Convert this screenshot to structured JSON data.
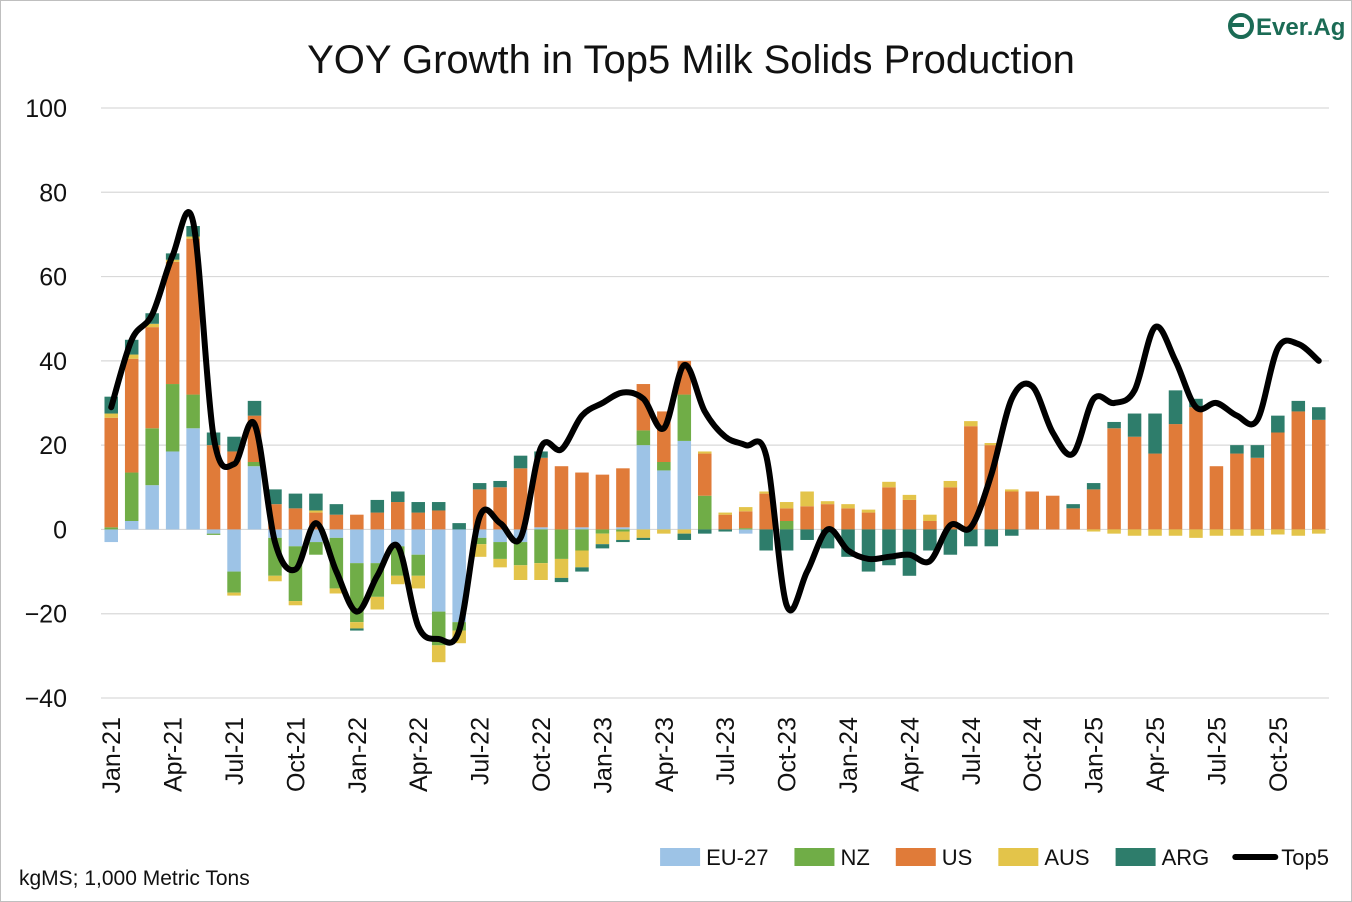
{
  "brand": {
    "logo_text": "Ever.Ag",
    "color": "#1b6b55"
  },
  "footnote": "kgMS; 1,000 Metric Tons",
  "chart_data": {
    "type": "bar",
    "stacked": true,
    "title": "YOY Growth in Top5 Milk Solids Production",
    "xlabel": "",
    "ylabel": "",
    "ylim": [
      -40,
      100
    ],
    "yticks": [
      -40,
      -20,
      0,
      20,
      40,
      60,
      80,
      100
    ],
    "grid": "horizontal",
    "legend_position": "bottom-right",
    "x_tick_labels": [
      {
        "index": 0,
        "label": "Jan-21"
      },
      {
        "index": 3,
        "label": "Apr-21"
      },
      {
        "index": 6,
        "label": "Jul-21"
      },
      {
        "index": 9,
        "label": "Oct-21"
      },
      {
        "index": 12,
        "label": "Jan-22"
      },
      {
        "index": 15,
        "label": "Apr-22"
      },
      {
        "index": 18,
        "label": "Jul-22"
      },
      {
        "index": 21,
        "label": "Oct-22"
      },
      {
        "index": 24,
        "label": "Jan-23"
      },
      {
        "index": 27,
        "label": "Apr-23"
      },
      {
        "index": 30,
        "label": "Jul-23"
      },
      {
        "index": 33,
        "label": "Oct-23"
      },
      {
        "index": 36,
        "label": "Jan-24"
      },
      {
        "index": 39,
        "label": "Apr-24"
      },
      {
        "index": 42,
        "label": "Jul-24"
      },
      {
        "index": 45,
        "label": "Oct-24"
      },
      {
        "index": 48,
        "label": "Jan-25"
      },
      {
        "index": 51,
        "label": "Apr-25"
      },
      {
        "index": 54,
        "label": "Jul-25"
      },
      {
        "index": 57,
        "label": "Oct-25"
      }
    ],
    "categories": [
      "Jan-21",
      "Feb-21",
      "Mar-21",
      "Apr-21",
      "May-21",
      "Jun-21",
      "Jul-21",
      "Aug-21",
      "Sep-21",
      "Oct-21",
      "Nov-21",
      "Dec-21",
      "Jan-22",
      "Feb-22",
      "Mar-22",
      "Apr-22",
      "May-22",
      "Jun-22",
      "Jul-22",
      "Aug-22",
      "Sep-22",
      "Oct-22",
      "Nov-22",
      "Dec-22",
      "Jan-23",
      "Feb-23",
      "Mar-23",
      "Apr-23",
      "May-23",
      "Jun-23",
      "Jul-23",
      "Aug-23",
      "Sep-23",
      "Oct-23",
      "Nov-23",
      "Dec-23",
      "Jan-24",
      "Feb-24",
      "Mar-24",
      "Apr-24",
      "May-24",
      "Jun-24",
      "Jul-24",
      "Aug-24",
      "Sep-24",
      "Oct-24",
      "Nov-24",
      "Dec-24",
      "Jan-25",
      "Feb-25",
      "Mar-25",
      "Apr-25",
      "May-25",
      "Jun-25",
      "Jul-25",
      "Aug-25",
      "Sep-25",
      "Oct-25",
      "Nov-25",
      "Dec-25"
    ],
    "series": [
      {
        "name": "EU-27",
        "color": "#9dc3e6",
        "values": [
          -3,
          2,
          10.5,
          18.5,
          24,
          -1,
          -10,
          15,
          -2,
          -4,
          -3,
          -2,
          -8,
          -8,
          -4,
          -6,
          -19.5,
          -22,
          -2,
          -3,
          -3,
          0.5,
          0,
          0.5,
          0,
          0.5,
          20,
          14,
          21,
          0,
          0,
          -1,
          0,
          0,
          0,
          0,
          0,
          0,
          0,
          0,
          0,
          0,
          0,
          0,
          0,
          0,
          0,
          0,
          0,
          0,
          0,
          0,
          0,
          0,
          0,
          0,
          0,
          0,
          0,
          0
        ]
      },
      {
        "name": "NZ",
        "color": "#70ad47",
        "values": [
          0.5,
          11.5,
          13.5,
          16,
          8,
          -0.3,
          -5,
          1,
          -9,
          -13,
          -3,
          -12,
          -14,
          -8,
          -7,
          -5,
          -8,
          -2,
          -1.5,
          -4,
          -5.5,
          -8,
          -7,
          -5,
          -1,
          -0.5,
          3.5,
          2,
          11,
          8,
          0,
          0.3,
          0,
          2,
          0,
          0,
          0,
          0,
          0,
          0,
          0,
          0,
          0,
          0,
          0,
          0,
          0,
          0,
          0,
          0,
          0,
          0,
          0,
          0,
          0,
          0,
          0,
          0,
          0,
          0
        ]
      },
      {
        "name": "US",
        "color": "#e07b39",
        "values": [
          26,
          27,
          24,
          29,
          37,
          20,
          18.5,
          11,
          6,
          5,
          4,
          3.5,
          3.5,
          4,
          6.5,
          4,
          4.5,
          0,
          9.5,
          10,
          14.5,
          16.5,
          15,
          13,
          13,
          14,
          11,
          12,
          8,
          10,
          3.5,
          4,
          8.5,
          3,
          5.5,
          6,
          5,
          4,
          10,
          7,
          2,
          10,
          24.5,
          20,
          9,
          9,
          8,
          5,
          9.5,
          24,
          22,
          18,
          25,
          29,
          15,
          18,
          17,
          23,
          28,
          26
        ]
      },
      {
        "name": "AUS",
        "color": "#e3c44a",
        "values": [
          1,
          1,
          0.8,
          0.5,
          0.5,
          0,
          -0.7,
          0,
          -1.3,
          -1,
          0.5,
          -1.2,
          -1.5,
          -3,
          -2,
          -3,
          -4,
          -3,
          -3,
          -2,
          -3.5,
          -4,
          -4.5,
          -4,
          -2.5,
          -2,
          -2,
          -1,
          -1,
          0.5,
          0.5,
          1,
          0.5,
          1.5,
          3.5,
          0.7,
          1,
          0.7,
          1.3,
          1.2,
          1.5,
          1.5,
          1.2,
          0.5,
          0.5,
          0,
          0,
          0,
          -0.5,
          -1,
          -1.5,
          -1.5,
          -1.5,
          -2,
          -1.5,
          -1.5,
          -1.5,
          -1.2,
          -1.5,
          -1
        ]
      },
      {
        "name": "ARG",
        "color": "#2e7d6b",
        "values": [
          4,
          3.5,
          2.5,
          1.5,
          2.5,
          3,
          3.5,
          3.5,
          3.5,
          3.5,
          4,
          2.5,
          -0.5,
          3,
          2.5,
          2.5,
          2,
          1.5,
          1.5,
          1.5,
          3,
          1.5,
          -1,
          -1,
          -1,
          -0.5,
          -0.5,
          0,
          -1.5,
          -1,
          -0.5,
          0,
          -5,
          -5,
          -2.5,
          -4.5,
          -6.5,
          -10,
          -8.5,
          -11,
          -5,
          -6,
          -4,
          -4,
          -1.5,
          0,
          0,
          1,
          1.5,
          1.5,
          5.5,
          9.5,
          8,
          2,
          0,
          2,
          3,
          4,
          2.5,
          3
        ]
      }
    ],
    "line": {
      "name": "Top5",
      "color": "#000000",
      "values": [
        29,
        45,
        51,
        65,
        73,
        22,
        15.5,
        25,
        -3,
        -9.5,
        1.5,
        -10,
        -19.5,
        -11,
        -4,
        -23,
        -26,
        -24,
        3,
        1.5,
        -2,
        19.5,
        19,
        27,
        30,
        32.5,
        31,
        24,
        39,
        28,
        22,
        20,
        17.5,
        -18,
        -10,
        0,
        -5,
        -7,
        -6.5,
        -6,
        -7.5,
        1,
        0.5,
        13,
        31,
        34,
        23,
        18,
        31,
        30,
        33,
        48,
        40,
        29,
        30,
        27,
        26,
        43,
        44,
        40
      ]
    }
  }
}
